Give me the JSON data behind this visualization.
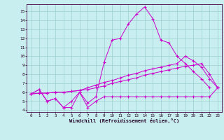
{
  "xlabel": "Windchill (Refroidissement éolien,°C)",
  "xlim": [
    -0.5,
    23.5
  ],
  "ylim": [
    3.8,
    15.8
  ],
  "xticks": [
    0,
    1,
    2,
    3,
    4,
    5,
    6,
    7,
    8,
    9,
    10,
    11,
    12,
    13,
    14,
    15,
    16,
    17,
    18,
    19,
    20,
    21,
    22,
    23
  ],
  "yticks": [
    4,
    5,
    6,
    7,
    8,
    9,
    10,
    11,
    12,
    13,
    14,
    15
  ],
  "bg_color": "#c8eef0",
  "grid_color": "#9ecece",
  "line_color": "#cc00cc",
  "series": [
    {
      "x": [
        0,
        1,
        2,
        3,
        4,
        5,
        6,
        7,
        8,
        9,
        10,
        11,
        12,
        13,
        14,
        15,
        16,
        17,
        18,
        19,
        20,
        21,
        22,
        23
      ],
      "y": [
        5.8,
        6.3,
        5.0,
        5.3,
        4.3,
        4.3,
        6.0,
        4.3,
        5.0,
        5.5,
        5.5,
        5.5,
        5.5,
        5.5,
        5.5,
        5.5,
        5.5,
        5.5,
        5.5,
        5.5,
        5.5,
        5.5,
        5.5,
        6.5
      ]
    },
    {
      "x": [
        0,
        1,
        2,
        3,
        4,
        5,
        6,
        7,
        8,
        9,
        10,
        11,
        12,
        13,
        14,
        15,
        16,
        17,
        18,
        19,
        20,
        21,
        22
      ],
      "y": [
        5.8,
        6.3,
        5.0,
        5.3,
        4.3,
        5.0,
        6.0,
        4.8,
        5.5,
        9.3,
        11.8,
        12.0,
        13.6,
        14.7,
        15.5,
        14.2,
        11.8,
        11.5,
        10.0,
        9.2,
        8.3,
        7.5,
        6.5
      ]
    },
    {
      "x": [
        0,
        1,
        2,
        3,
        4,
        5,
        6,
        7,
        8,
        9,
        10,
        11,
        12,
        13,
        14,
        15,
        16,
        17,
        18,
        19,
        20,
        21,
        22,
        23
      ],
      "y": [
        5.8,
        5.9,
        5.9,
        6.0,
        6.0,
        6.1,
        6.2,
        6.3,
        6.5,
        6.7,
        7.0,
        7.2,
        7.4,
        7.6,
        7.9,
        8.1,
        8.3,
        8.5,
        8.7,
        8.9,
        9.0,
        9.2,
        8.0,
        6.5
      ]
    },
    {
      "x": [
        0,
        1,
        2,
        3,
        4,
        5,
        6,
        7,
        8,
        9,
        10,
        11,
        12,
        13,
        14,
        15,
        16,
        17,
        18,
        19,
        20,
        21,
        22,
        23
      ],
      "y": [
        5.8,
        5.9,
        5.9,
        6.0,
        6.0,
        6.1,
        6.2,
        6.5,
        6.8,
        7.1,
        7.3,
        7.6,
        7.9,
        8.1,
        8.4,
        8.6,
        8.8,
        9.0,
        9.2,
        10.0,
        9.5,
        8.8,
        7.5,
        6.5
      ]
    }
  ]
}
